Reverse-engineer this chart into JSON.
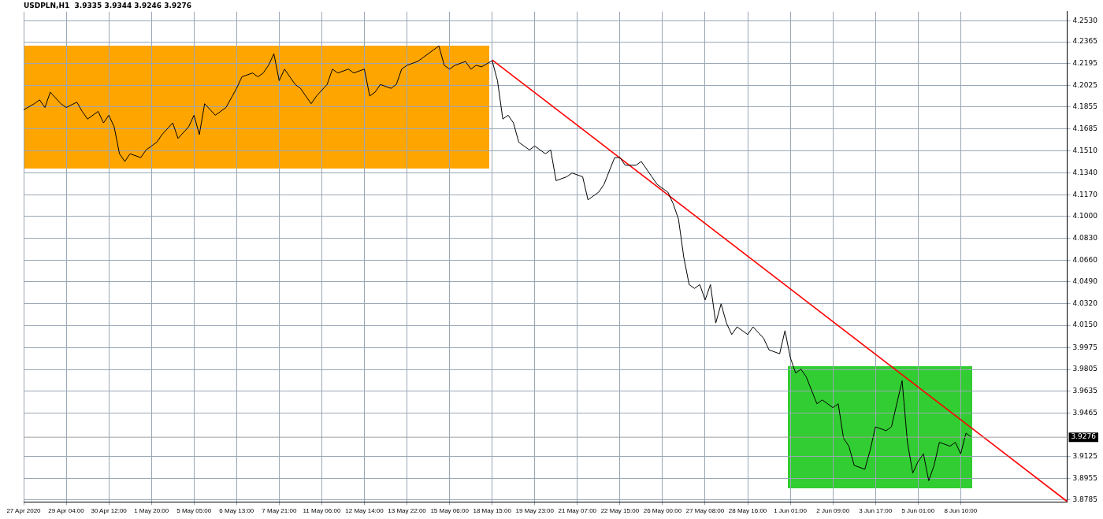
{
  "chart_data": {
    "type": "line",
    "title": "USDPLN,H1  3.9335 3.9344 3.9246 3.9276",
    "categories": [
      "27 Apr 2020",
      null,
      null,
      null,
      null,
      null,
      null,
      null,
      "29 Apr 04:00",
      null,
      null,
      null,
      null,
      null,
      null,
      null,
      "30 Apr 12:00",
      null,
      null,
      null,
      null,
      null,
      null,
      null,
      "1 May 20:00",
      null,
      null,
      null,
      null,
      null,
      null,
      null,
      "5 May 05:00",
      null,
      null,
      null,
      null,
      null,
      null,
      null,
      "6 May 13:00",
      null,
      null,
      null,
      null,
      null,
      null,
      null,
      "7 May 21:00",
      null,
      null,
      null,
      null,
      null,
      null,
      null,
      "11 May 06:00",
      null,
      null,
      null,
      null,
      null,
      null,
      null,
      "12 May 14:00",
      null,
      null,
      null,
      null,
      null,
      null,
      null,
      "13 May 22:00",
      null,
      null,
      null,
      null,
      null,
      null,
      null,
      "15 May 06:00",
      null,
      null,
      null,
      null,
      null,
      null,
      null,
      "18 May 15:00",
      null,
      null,
      null,
      null,
      null,
      null,
      null,
      "19 May 23:00",
      null,
      null,
      null,
      null,
      null,
      null,
      null,
      "21 May 07:00",
      null,
      null,
      null,
      null,
      null,
      null,
      null,
      "22 May 15:00",
      null,
      null,
      null,
      null,
      null,
      null,
      null,
      "26 May 00:00",
      null,
      null,
      null,
      null,
      null,
      null,
      null,
      "27 May 08:00",
      null,
      null,
      null,
      null,
      null,
      null,
      null,
      "28 May 16:00",
      null,
      null,
      null,
      null,
      null,
      null,
      null,
      "1 Jun 01:00",
      null,
      null,
      null,
      null,
      null,
      null,
      null,
      "2 Jun 09:00",
      null,
      null,
      null,
      null,
      null,
      null,
      null,
      "3 Jun 17:00",
      null,
      null,
      null,
      null,
      null,
      null,
      null,
      "5 Jun 01:00",
      null,
      null,
      null,
      null,
      null,
      null,
      null,
      "8 Jun 10:00",
      null,
      null,
      null,
      null,
      null,
      null,
      null,
      null,
      null,
      null,
      null,
      null,
      null,
      null,
      null,
      null,
      null,
      null,
      null,
      null
    ],
    "ylim": [
      3.877,
      4.26
    ],
    "yticks": [
      {
        "value": 4.253,
        "label": "4.2530"
      },
      {
        "value": 4.2365,
        "label": "4.2365"
      },
      {
        "value": 4.2195,
        "label": "4.2195"
      },
      {
        "value": 4.2025,
        "label": "4.2025"
      },
      {
        "value": 4.1855,
        "label": "4.1855"
      },
      {
        "value": 4.1685,
        "label": "4.1685"
      },
      {
        "value": 4.151,
        "label": "4.1510"
      },
      {
        "value": 4.134,
        "label": "4.1340"
      },
      {
        "value": 4.117,
        "label": "4.1170"
      },
      {
        "value": 4.1,
        "label": "4.1000"
      },
      {
        "value": 4.083,
        "label": "4.0830"
      },
      {
        "value": 4.066,
        "label": "4.0660"
      },
      {
        "value": 4.049,
        "label": "4.0490"
      },
      {
        "value": 4.032,
        "label": "4.0320"
      },
      {
        "value": 4.015,
        "label": "4.0150"
      },
      {
        "value": 3.9975,
        "label": "3.9975"
      },
      {
        "value": 3.9805,
        "label": "3.9805"
      },
      {
        "value": 3.9635,
        "label": "3.9635"
      },
      {
        "value": 3.9465,
        "label": "3.9465"
      },
      {
        "value": 3.9125,
        "label": "3.9125"
      },
      {
        "value": 3.8955,
        "label": "3.8955"
      },
      {
        "value": 3.8785,
        "label": "3.8785"
      }
    ],
    "grid": true,
    "legend": false,
    "marker": "none",
    "ref_lines": [
      {
        "axis": "y",
        "value": 3.9276,
        "label": "3.9276",
        "color": "#a0a0a0"
      }
    ],
    "series": [
      {
        "color": "#000000",
        "values": [
          4.1833,
          null,
          4.1881,
          4.1911,
          4.1851,
          4.1971,
          null,
          4.1881,
          4.1851,
          null,
          4.1893,
          4.1821,
          4.1761,
          null,
          4.1821,
          4.1731,
          4.1791,
          4.1701,
          4.149,
          4.143,
          4.149,
          null,
          4.146,
          4.152,
          null,
          4.158,
          4.164,
          null,
          4.1731,
          4.161,
          null,
          4.1701,
          4.1791,
          4.164,
          4.1881,
          null,
          4.1791,
          4.1821,
          4.1851,
          null,
          4.2001,
          4.2091,
          null,
          4.2121,
          4.2091,
          4.2121,
          4.2181,
          4.2271,
          4.2061,
          4.2151,
          null,
          4.2031,
          4.2001,
          null,
          4.1881,
          4.1941,
          null,
          4.2031,
          4.2151,
          4.2121,
          null,
          4.2151,
          4.2121,
          null,
          4.2151,
          4.1941,
          4.1971,
          4.2031,
          null,
          4.2001,
          4.2031,
          4.2151,
          4.2181,
          null,
          4.2211,
          4.2241,
          null,
          4.2302,
          4.2332,
          4.2181,
          4.2151,
          4.2181,
          null,
          4.2211,
          4.2151,
          4.2181,
          4.2169,
          null,
          4.2217,
          4.2061,
          4.1761,
          4.1791,
          4.1731,
          4.158,
          null,
          4.152,
          4.155,
          null,
          4.149,
          4.152,
          4.128,
          null,
          4.131,
          4.134,
          null,
          4.131,
          4.113,
          null,
          4.119,
          4.125,
          null,
          4.146,
          4.146,
          4.14,
          null,
          4.14,
          4.143,
          null,
          4.131,
          4.125,
          null,
          4.119,
          4.11,
          4.0979,
          4.0679,
          4.0468,
          4.0438,
          4.0468,
          4.0348,
          4.0468,
          4.0168,
          4.0318,
          4.0168,
          4.0078,
          4.0138,
          null,
          4.0078,
          4.0138,
          null,
          4.0048,
          3.9958,
          null,
          3.9928,
          4.0108,
          3.9898,
          3.9777,
          3.9807,
          3.9747,
          null,
          3.9537,
          3.9567,
          null,
          3.9507,
          3.9537,
          3.9267,
          3.9206,
          3.9056,
          null,
          3.9026,
          3.9176,
          3.9357,
          null,
          3.9327,
          3.9357,
          null,
          3.9717,
          3.9236,
          3.8996,
          3.9086,
          3.9146,
          3.8936,
          3.9056,
          3.9236,
          null,
          3.9206,
          3.9236,
          3.9146,
          3.9308,
          3.9276,
          null,
          null,
          null,
          null,
          null,
          null,
          null,
          null,
          null,
          null,
          null,
          null,
          null,
          null,
          null,
          null,
          null,
          null
        ]
      },
      {
        "type": "line",
        "color": "#ff0000",
        "values": [
          null,
          null,
          null,
          null,
          null,
          null,
          null,
          null,
          null,
          null,
          null,
          null,
          null,
          null,
          null,
          null,
          null,
          null,
          null,
          null,
          null,
          null,
          null,
          null,
          null,
          null,
          null,
          null,
          null,
          null,
          null,
          null,
          null,
          null,
          null,
          null,
          null,
          null,
          null,
          null,
          null,
          null,
          null,
          null,
          null,
          null,
          null,
          null,
          null,
          null,
          null,
          null,
          null,
          null,
          null,
          null,
          null,
          null,
          null,
          null,
          null,
          null,
          null,
          null,
          null,
          null,
          null,
          null,
          null,
          null,
          null,
          null,
          null,
          null,
          null,
          null,
          null,
          null,
          null,
          null,
          null,
          null,
          null,
          null,
          null,
          null,
          null,
          null,
          4.2223,
          null,
          null,
          null,
          null,
          null,
          null,
          null,
          null,
          null,
          null,
          null,
          null,
          null,
          null,
          null,
          null,
          null,
          null,
          null,
          null,
          null,
          null,
          null,
          null,
          null,
          null,
          null,
          null,
          null,
          null,
          null,
          null,
          null,
          null,
          null,
          null,
          null,
          null,
          null,
          null,
          null,
          null,
          null,
          null,
          null,
          null,
          null,
          null,
          null,
          null,
          null,
          null,
          null,
          null,
          null,
          null,
          null,
          null,
          null,
          null,
          null,
          null,
          null,
          null,
          null,
          null,
          null,
          null,
          null,
          null,
          null,
          null,
          null,
          null,
          null,
          null,
          null,
          null,
          null,
          null,
          null,
          null,
          null,
          null,
          null,
          null,
          null,
          null,
          null,
          null,
          null,
          null,
          null,
          null,
          null,
          null,
          null,
          null,
          null,
          null,
          null,
          null,
          null,
          null,
          null,
          null,
          null,
          3.8774
        ]
      }
    ]
  }
}
